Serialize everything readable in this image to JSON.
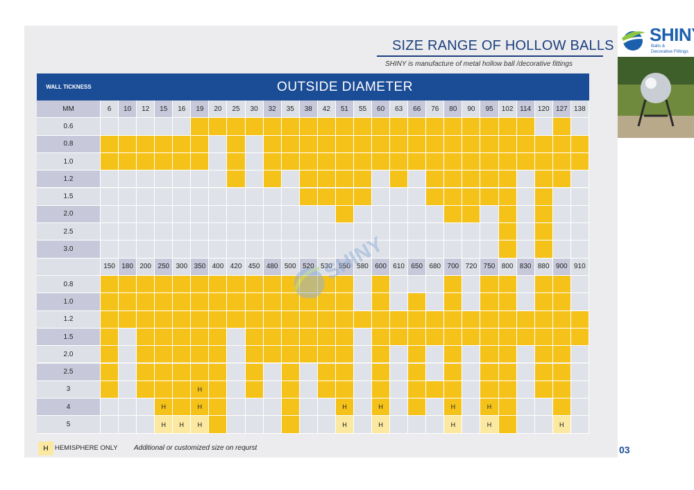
{
  "header": {
    "title": "SIZE RANGE OF HOLLOW BALLS",
    "subtitle": "SHINY is manufacture of metal hollow ball /decorative fittings"
  },
  "logo": {
    "name": "SHINY",
    "tagline_1": "Balls &",
    "tagline_2": "Decorative Fittings",
    "icon": "globe-swoosh-icon"
  },
  "watermark": {
    "text": "SHINY",
    "icon": "globe-swoosh-icon"
  },
  "table": {
    "wall_label": "WALL TICKNESS",
    "banner": "OUTSIDE  DIAMETER",
    "part1": {
      "header_label": "MM",
      "diameters": [
        "6",
        "10",
        "12",
        "15",
        "16",
        "19",
        "20",
        "25",
        "30",
        "32",
        "35",
        "38",
        "42",
        "51",
        "55",
        "60",
        "63",
        "66",
        "76",
        "80",
        "90",
        "95",
        "102",
        "114",
        "120",
        "127",
        "138"
      ],
      "rows": [
        {
          "label": "0.6",
          "cells": "-----YYYYYYYYYYYYYYYYYYY-Y-"
        },
        {
          "label": "0.8",
          "cells": "YYYYYY-Y-YYYYYYYYYYYYYYYYYY"
        },
        {
          "label": "1.0",
          "cells": "YYYYYY-Y-YYYYYYYYYYYYYYYYYY"
        },
        {
          "label": "1.2",
          "cells": "-------Y-Y-YYYY-Y-YYYYY-YY-"
        },
        {
          "label": "1.5",
          "cells": "-----------YYYY---YYYYY-Y--"
        },
        {
          "label": "2.0",
          "cells": "-------------Y-----YY-Y-Y--"
        },
        {
          "label": "2.5",
          "cells": "----------------------Y-Y--"
        },
        {
          "label": "3.0",
          "cells": "----------------------Y-Y--"
        }
      ]
    },
    "part2": {
      "header_label": "",
      "diameters": [
        "150",
        "180",
        "200",
        "250",
        "300",
        "350",
        "400",
        "420",
        "450",
        "480",
        "500",
        "520",
        "530",
        "550",
        "580",
        "600",
        "610",
        "650",
        "680",
        "700",
        "720",
        "750",
        "800",
        "830",
        "880",
        "900",
        "910"
      ],
      "rows": [
        {
          "label": "0.8",
          "cells": "YYYYYYYYYYYYYY-Y---Y-YY-YY-"
        },
        {
          "label": "1.0",
          "cells": "YYYYYYYYYYYYYY-Y-Y-Y-YY-YY-"
        },
        {
          "label": "1.2",
          "cells": "YYYYYYYYYYYYYYYYYYYYYYYYYYY"
        },
        {
          "label": "1.5",
          "cells": "Y-YYYYY-YYYYYY-YYYYYYYYYYYY"
        },
        {
          "label": "2.0",
          "cells": "Y-YYYYY-YYYYYY-Y-Y-Y-YY-YY-"
        },
        {
          "label": "2.5",
          "cells": "Y-YYYYY-Y-Y-YY-Y-Y-Y-YY-YY-"
        },
        {
          "label": "3",
          "cells": "Y-YYYHY-Y-Y-YY-Y-YYY-YY-YY-"
        },
        {
          "label": "4",
          "cells": "---HYHY---Y--H-H-Y-H-HY--Y-"
        },
        {
          "label": "5",
          "cells": "---HHHY---Y--H-H---H-HY--H-"
        }
      ]
    }
  },
  "legend": {
    "marker": "H",
    "label": "HEMISPHERE ONLY"
  },
  "note": "Additional or customized size on requrst",
  "page_number": "03",
  "colors": {
    "available": "#f5c21a",
    "hemisphere": "#fbe9a2",
    "empty": "#dfe2e8",
    "banner": "#1b4c96"
  }
}
